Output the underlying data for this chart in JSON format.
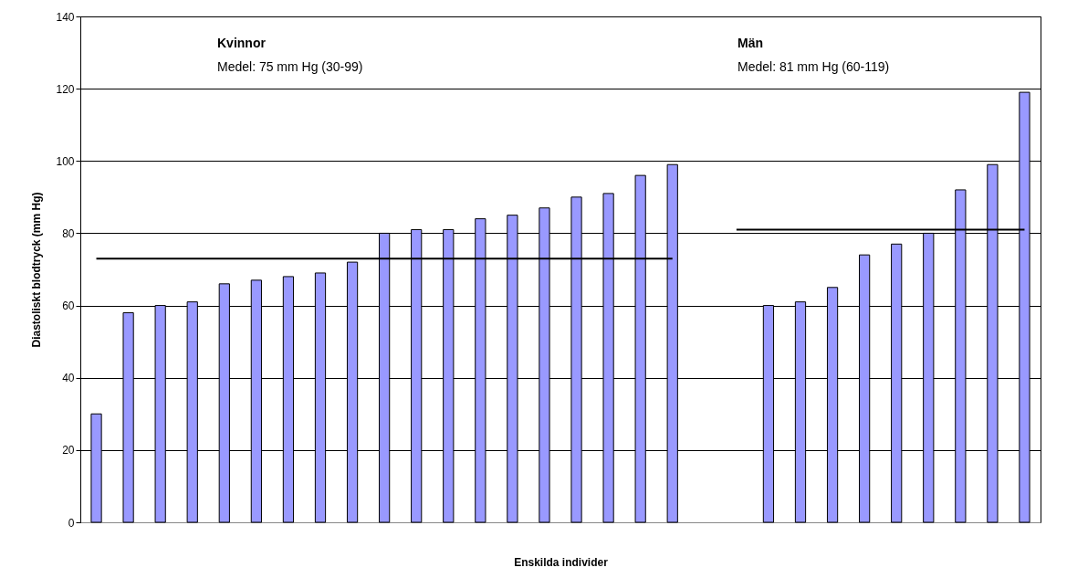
{
  "chart_data": {
    "type": "bar",
    "xlabel": "Enskilda individer",
    "ylabel": "Diastoliskt blodtryck (mm Hg)",
    "categories": [
      null,
      null,
      null,
      null,
      null,
      null,
      null,
      null,
      null,
      null,
      null,
      null,
      null,
      null,
      null,
      null,
      null,
      null,
      null,
      null,
      null,
      null,
      null,
      null,
      null,
      null,
      null,
      null,
      null,
      null
    ],
    "series": [
      {
        "color": "#9999ff",
        "values": [
          30,
          58,
          60,
          61,
          66,
          67,
          68,
          69,
          72,
          80,
          81,
          81,
          84,
          85,
          87,
          90,
          91,
          96,
          99,
          null,
          null,
          60,
          61,
          65,
          74,
          77,
          80,
          92,
          99,
          119
        ]
      },
      {
        "type": "line",
        "color": "#000000",
        "values": [
          73,
          73,
          73,
          73,
          73,
          73,
          73,
          73,
          73,
          73,
          73,
          73,
          73,
          73,
          73,
          73,
          73,
          73,
          73,
          null,
          null,
          null,
          null,
          null,
          null,
          null,
          null,
          null,
          null,
          null
        ]
      },
      {
        "type": "line",
        "color": "#000000",
        "values": [
          null,
          null,
          null,
          null,
          null,
          null,
          null,
          null,
          null,
          null,
          null,
          null,
          null,
          null,
          null,
          null,
          null,
          null,
          null,
          null,
          81,
          81,
          81,
          81,
          81,
          81,
          81,
          81,
          81,
          81
        ]
      }
    ],
    "ylim": [
      0,
      140
    ],
    "yticks": [
      0,
      20,
      40,
      60,
      80,
      100,
      120,
      140
    ],
    "grid": "y",
    "legend": false,
    "annotations": [
      "Kvinnor",
      "Medel: 75 mm Hg (30-99)",
      "Män",
      "Medel: 81 mm Hg (60-119)"
    ]
  }
}
